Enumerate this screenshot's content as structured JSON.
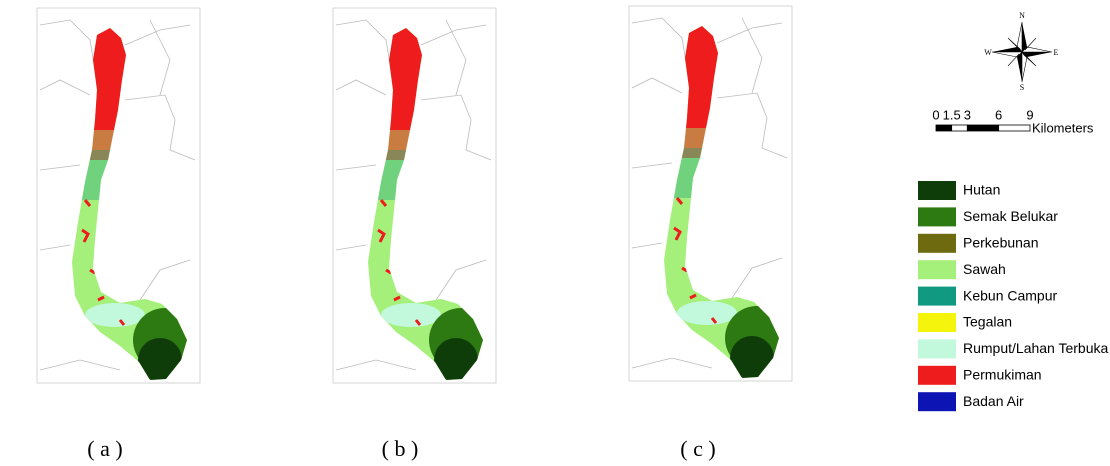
{
  "panels": [
    {
      "caption": "( a )"
    },
    {
      "caption": "( b )"
    },
    {
      "caption": "( c )"
    }
  ],
  "compass": {
    "n": "N",
    "e": "E",
    "s": "S",
    "w": "W"
  },
  "scale_bar": {
    "ticks": [
      0,
      1.5,
      3,
      6,
      9
    ],
    "unit": "Kilometers"
  },
  "legend": [
    {
      "label": "Hutan",
      "color": "#0f3d0a"
    },
    {
      "label": "Semak Belukar",
      "color": "#2e7a12"
    },
    {
      "label": "Perkebunan",
      "color": "#6e6a10"
    },
    {
      "label": "Sawah",
      "color": "#a4f07a"
    },
    {
      "label": "Kebun Campur",
      "color": "#109a82"
    },
    {
      "label": "Tegalan",
      "color": "#f4f40c"
    },
    {
      "label": "Rumput/Lahan Terbuka",
      "color": "#c2f8dc"
    },
    {
      "label": "Permukiman",
      "color": "#ee1c1c"
    },
    {
      "label": "Badan Air",
      "color": "#0c14b4"
    }
  ]
}
